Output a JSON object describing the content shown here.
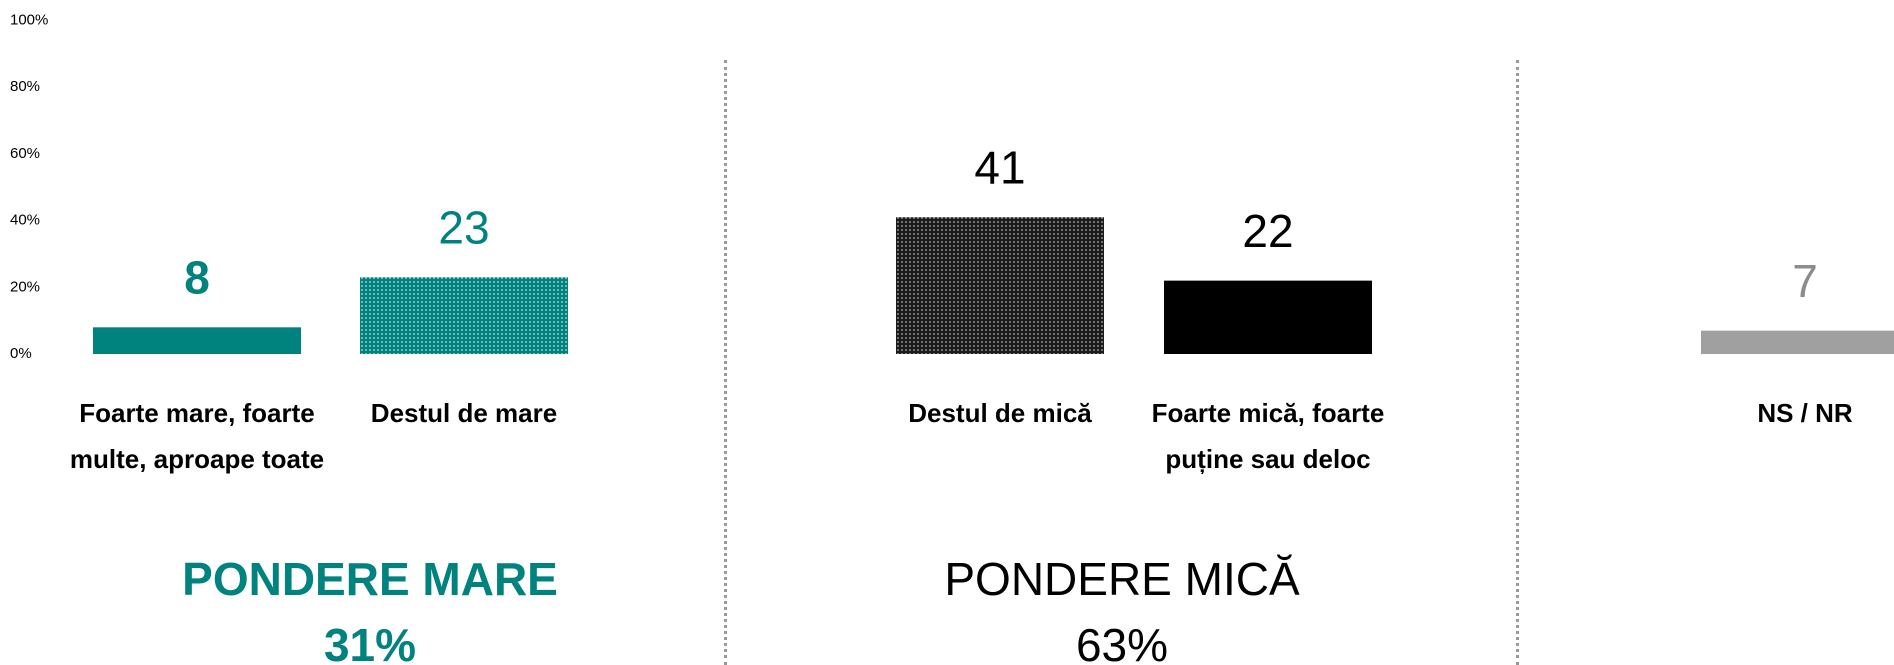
{
  "chart_data": {
    "type": "bar",
    "categories": [
      "Foarte mare, foarte multe, aproape toate",
      "Destul de mare",
      "Destul de mică",
      "Foarte mică, foarte puține sau deloc",
      "NS / NR"
    ],
    "values": [
      8,
      23,
      41,
      22,
      7
    ],
    "colors": [
      "#00827f",
      "#00827f",
      "#2a2a2a",
      "#000000",
      "#a0a0a0"
    ],
    "patterned": [
      false,
      true,
      true,
      false,
      false
    ],
    "label_colors": [
      "#00827f",
      "#00827f",
      "#000000",
      "#000000",
      "#8c8c8c"
    ],
    "ylim": [
      0,
      100
    ],
    "yticks": [
      {
        "value": 0,
        "label": "0%"
      },
      {
        "value": 20,
        "label": "20%"
      },
      {
        "value": 40,
        "label": "40%"
      },
      {
        "value": 60,
        "label": "60%"
      },
      {
        "value": 80,
        "label": "80%"
      },
      {
        "value": 100,
        "label": "100%"
      }
    ],
    "groups": [
      {
        "name": "PONDERE MARE",
        "total": "31%",
        "color": "#00827f",
        "bold": true
      },
      {
        "name": "PONDERE MICĂ",
        "total": "63%",
        "color": "#000000",
        "bold": false
      }
    ]
  }
}
